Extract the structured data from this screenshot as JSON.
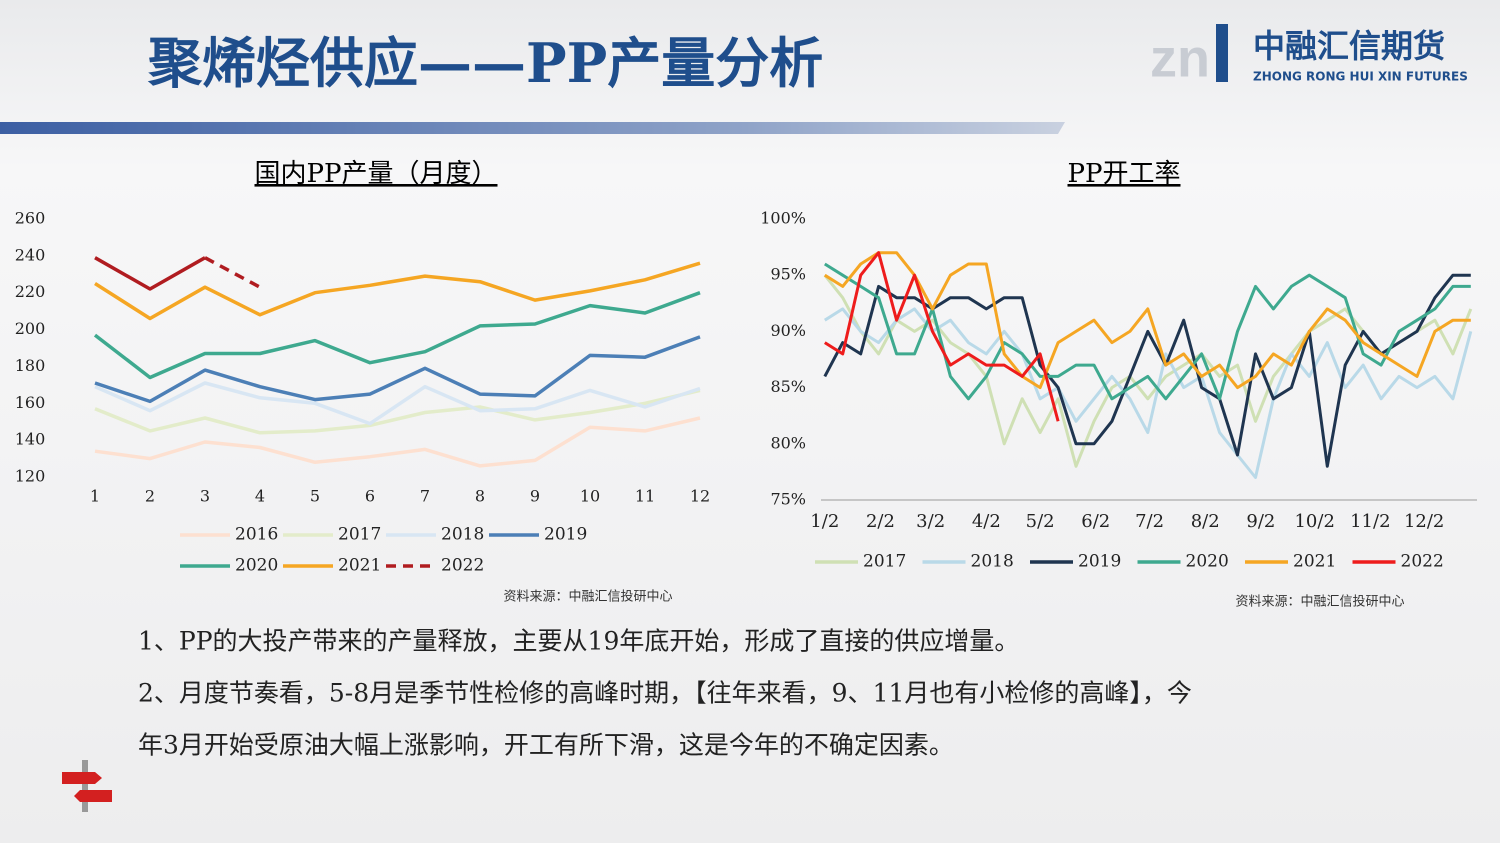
{
  "header": {
    "title": "聚烯烃供应——PP产量分析",
    "logo_cn": "中融汇信期货",
    "logo_en": "ZHONG RONG HUI XIN FUTURES"
  },
  "chart_data": [
    {
      "type": "line",
      "title": "国内PP产量（月度）",
      "categories": [
        "1",
        "2",
        "3",
        "4",
        "5",
        "6",
        "7",
        "8",
        "9",
        "10",
        "11",
        "12"
      ],
      "ylim": [
        120,
        260
      ],
      "yticks": [
        120,
        140,
        160,
        180,
        200,
        220,
        240,
        260
      ],
      "series": [
        {
          "name": "2016",
          "color": "#fde0d0",
          "values": [
            134,
            130,
            139,
            136,
            128,
            131,
            135,
            126,
            129,
            147,
            145,
            152
          ]
        },
        {
          "name": "2017",
          "color": "#e3ecca",
          "values": [
            157,
            145,
            152,
            144,
            145,
            148,
            155,
            158,
            151,
            155,
            160,
            167
          ]
        },
        {
          "name": "2018",
          "color": "#d8e6f3",
          "values": [
            169,
            156,
            171,
            163,
            160,
            149,
            169,
            156,
            157,
            167,
            158,
            168
          ]
        },
        {
          "name": "2019",
          "color": "#4c7fb6",
          "values": [
            171,
            161,
            178,
            169,
            162,
            165,
            179,
            165,
            164,
            186,
            185,
            196
          ]
        },
        {
          "name": "2020",
          "color": "#3ea98f",
          "values": [
            197,
            174,
            187,
            187,
            194,
            182,
            188,
            202,
            203,
            213,
            209,
            220
          ]
        },
        {
          "name": "2021",
          "color": "#f5a623",
          "values": [
            225,
            206,
            223,
            208,
            220,
            224,
            229,
            226,
            216,
            221,
            227,
            236
          ]
        },
        {
          "name": "2022",
          "color": "#b01c20",
          "dash_from": 2,
          "values": [
            239,
            222,
            239,
            223,
            null,
            null,
            null,
            null,
            null,
            null,
            null,
            null
          ]
        }
      ],
      "source": "资料来源：中融汇信投研中心"
    },
    {
      "type": "line",
      "title": "PP开工率",
      "x": [
        2,
        12,
        22,
        32,
        42,
        52,
        62,
        72,
        82,
        92,
        102,
        112,
        122,
        132,
        142,
        152,
        162,
        172,
        182,
        192,
        202,
        212,
        222,
        232,
        242,
        252,
        262,
        272,
        282,
        292,
        302,
        312,
        322,
        332,
        342,
        352,
        362
      ],
      "xlim": [
        1,
        366
      ],
      "xticks": [
        {
          "value": 2,
          "label": "1/2"
        },
        {
          "value": 33,
          "label": "2/2"
        },
        {
          "value": 61,
          "label": "3/2"
        },
        {
          "value": 92,
          "label": "4/2"
        },
        {
          "value": 122,
          "label": "5/2"
        },
        {
          "value": 153,
          "label": "6/2"
        },
        {
          "value": 183,
          "label": "7/2"
        },
        {
          "value": 214,
          "label": "8/2"
        },
        {
          "value": 245,
          "label": "9/2"
        },
        {
          "value": 275,
          "label": "10/2"
        },
        {
          "value": 306,
          "label": "11/2"
        },
        {
          "value": 336,
          "label": "12/2"
        }
      ],
      "ylim": [
        75,
        100
      ],
      "yticks": [
        {
          "value": 75,
          "label": "75%"
        },
        {
          "value": 80,
          "label": "80%"
        },
        {
          "value": 85,
          "label": "85%"
        },
        {
          "value": 90,
          "label": "90%"
        },
        {
          "value": 95,
          "label": "95%"
        },
        {
          "value": 100,
          "label": "100%"
        }
      ],
      "series": [
        {
          "name": "2017",
          "color": "#cfe0b4",
          "values": [
            95,
            93,
            90,
            88,
            91,
            90,
            91,
            89,
            88,
            86,
            80,
            84,
            81,
            84,
            78,
            82,
            85,
            86,
            84,
            86,
            87,
            88,
            86,
            87,
            82,
            86,
            88,
            90,
            91,
            92,
            90,
            88,
            89,
            90,
            91,
            88,
            92
          ]
        },
        {
          "name": "2018",
          "color": "#b9d9e8",
          "values": [
            91,
            92,
            90,
            89,
            91,
            92,
            90,
            91,
            89,
            88,
            90,
            88,
            84,
            85,
            82,
            84,
            86,
            84,
            81,
            88,
            85,
            86,
            81,
            79,
            77,
            84,
            88,
            86,
            89,
            85,
            87,
            84,
            86,
            85,
            86,
            84,
            90
          ]
        },
        {
          "name": "2019",
          "color": "#1f3550",
          "values": [
            86,
            89,
            88,
            94,
            93,
            93,
            92,
            93,
            93,
            92,
            93,
            93,
            87,
            85,
            80,
            80,
            82,
            86,
            90,
            87,
            91,
            85,
            84,
            79,
            88,
            84,
            85,
            90,
            78,
            87,
            90,
            88,
            89,
            90,
            93,
            95,
            95
          ]
        },
        {
          "name": "2020",
          "color": "#3ea98f",
          "values": [
            96,
            95,
            94,
            93,
            88,
            88,
            92,
            86,
            84,
            86,
            89,
            88,
            86,
            86,
            87,
            87,
            84,
            85,
            86,
            84,
            86,
            88,
            84,
            90,
            94,
            92,
            94,
            95,
            94,
            93,
            88,
            87,
            90,
            91,
            92,
            94,
            94
          ]
        },
        {
          "name": "2021",
          "color": "#f5a623",
          "values": [
            95,
            94,
            96,
            97,
            97,
            95,
            92,
            95,
            96,
            96,
            88,
            86,
            85,
            89,
            90,
            91,
            89,
            90,
            92,
            87,
            88,
            86,
            87,
            85,
            86,
            88,
            87,
            90,
            92,
            91,
            89,
            88,
            87,
            86,
            90,
            91,
            91
          ]
        },
        {
          "name": "2022",
          "color": "#ee1c1c",
          "values": [
            89,
            88,
            95,
            97,
            91,
            95,
            90,
            87,
            88,
            87,
            87,
            86,
            88,
            82,
            null,
            null,
            null,
            null,
            null,
            null,
            null,
            null,
            null,
            null,
            null,
            null,
            null,
            null,
            null,
            null,
            null,
            null,
            null,
            null,
            null,
            null,
            null
          ]
        }
      ],
      "source": "资料来源：中融汇信投研中心"
    }
  ],
  "bullets": [
    "1、PP的大投产带来的产量释放，主要从19年底开始，形成了直接的供应增量。",
    "2、月度节奏看，5-8月是季节性检修的高峰时期，【往年来看，9、11月也有小检修的高峰】，今",
    "年3月开始受原油大幅上涨影响，开工有所下滑，这是今年的不确定因素。"
  ]
}
